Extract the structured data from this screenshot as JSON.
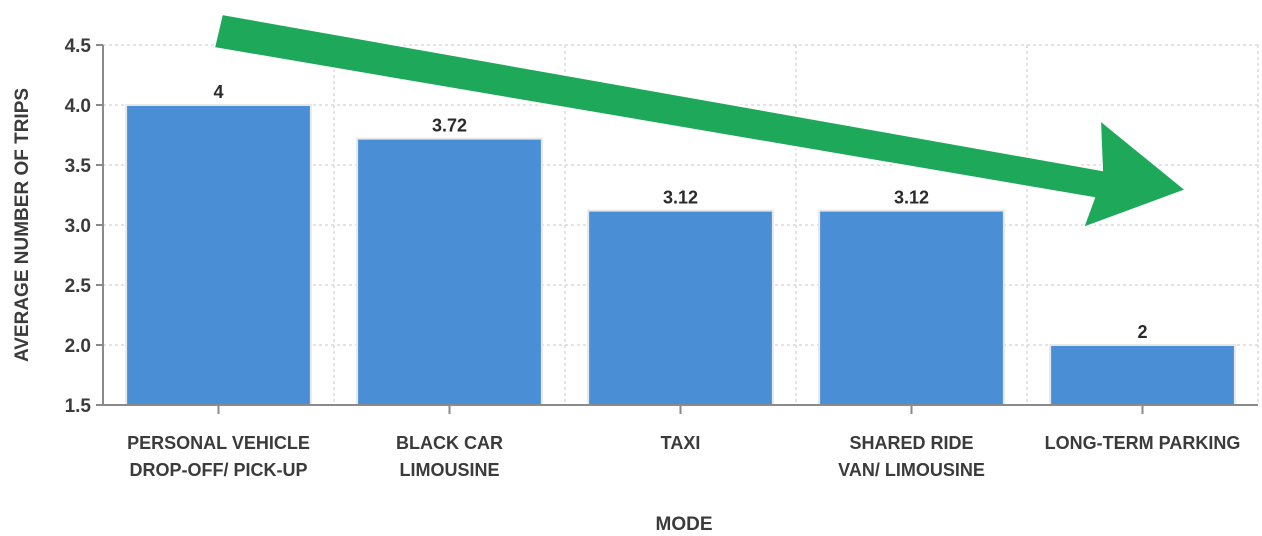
{
  "chart_data": {
    "type": "bar",
    "categories": [
      [
        "PERSONAL VEHICLE",
        "DROP-OFF/ PICK-UP"
      ],
      [
        "BLACK CAR",
        "LIMOUSINE"
      ],
      [
        "TAXI"
      ],
      [
        "SHARED RIDE",
        "VAN/ LIMOUSINE"
      ],
      [
        "LONG-TERM PARKING"
      ]
    ],
    "values": [
      4,
      3.72,
      3.12,
      3.12,
      2
    ],
    "value_labels": [
      "4",
      "3.72",
      "3.12",
      "3.12",
      "2"
    ],
    "xlabel": "MODE",
    "ylabel": "AVERAGE NUMBER OF TRIPS",
    "ylim": [
      1.5,
      4.5
    ],
    "yticks": [
      1.5,
      2.0,
      2.5,
      3.0,
      3.5,
      4.0,
      4.5
    ],
    "ytick_labels": [
      "1.5",
      "2.0",
      "2.5",
      "3.0",
      "3.5",
      "4.0",
      "4.5"
    ],
    "grid": true,
    "annotation": "downward trend arrow",
    "colors": {
      "bar": "#4a8fd6",
      "bar_edge": "#e8e8e8",
      "arrow": "#1ea85a",
      "arrow_edge": "#ffffff"
    }
  }
}
